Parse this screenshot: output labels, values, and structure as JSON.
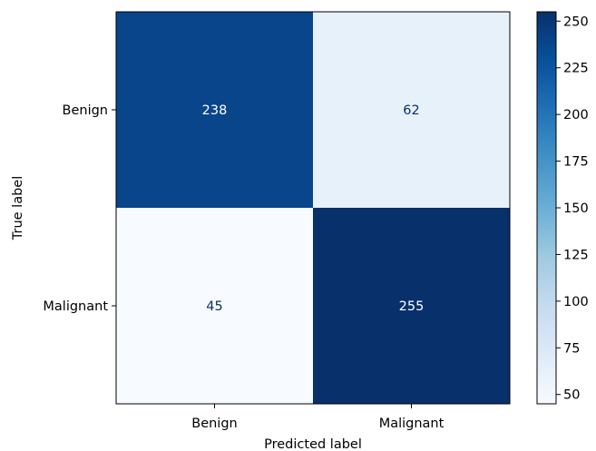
{
  "chart_data": {
    "type": "heatmap",
    "title": "",
    "xlabel": "Predicted label",
    "ylabel": "True label",
    "x_categories": [
      "Benign",
      "Malignant"
    ],
    "y_categories": [
      "Benign",
      "Malignant"
    ],
    "values": [
      [
        238,
        62
      ],
      [
        45,
        255
      ]
    ],
    "colormap": "Blues",
    "colorbar": {
      "range": [
        45,
        255
      ],
      "ticks": [
        50,
        75,
        100,
        125,
        150,
        175,
        200,
        225,
        250
      ]
    },
    "grid": false
  }
}
